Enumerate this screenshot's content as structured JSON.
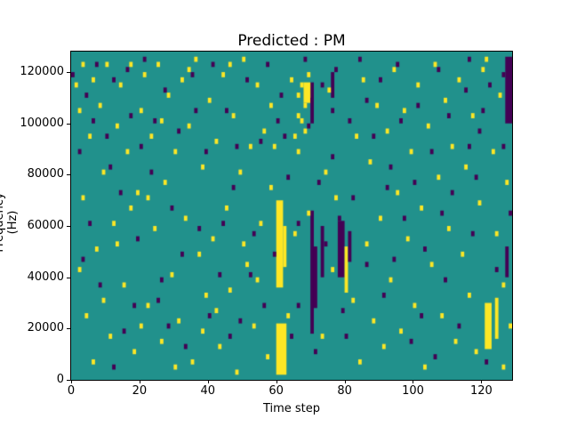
{
  "figure": {
    "background": "#ffffff"
  },
  "chart_data": {
    "type": "heatmap",
    "title": "Predicted : PM",
    "xlabel": "Time step",
    "ylabel": "Frequency (Hz)",
    "xlim": [
      0,
      129
    ],
    "ylim": [
      0,
      128000
    ],
    "x_ticks": [
      0,
      20,
      40,
      60,
      80,
      100,
      120
    ],
    "y_ticks": [
      0,
      20000,
      40000,
      60000,
      80000,
      100000,
      120000
    ],
    "grid": {
      "cols": 129,
      "rows": 64,
      "freq_per_row": 2000
    },
    "colors": {
      "background": "#21918c",
      "yellow": "#fde725",
      "purple": "#440154"
    },
    "legend": "none",
    "blocks": [
      {
        "c": 60,
        "r": 1,
        "w": 3,
        "h": 10,
        "color": "y"
      },
      {
        "c": 60,
        "r": 18,
        "w": 2,
        "h": 17,
        "color": "y"
      },
      {
        "c": 62,
        "r": 22,
        "w": 1,
        "h": 8,
        "color": "y"
      },
      {
        "c": 70,
        "r": 9,
        "w": 1,
        "h": 24,
        "color": "p"
      },
      {
        "c": 71,
        "r": 14,
        "w": 1,
        "h": 12,
        "color": "p"
      },
      {
        "c": 73,
        "r": 20,
        "w": 1,
        "h": 10,
        "color": "p"
      },
      {
        "c": 78,
        "r": 20,
        "w": 2,
        "h": 11,
        "color": "p"
      },
      {
        "c": 80,
        "r": 17,
        "w": 1,
        "h": 9,
        "color": "y"
      },
      {
        "c": 81,
        "r": 23,
        "w": 1,
        "h": 6,
        "color": "p"
      },
      {
        "c": 76,
        "r": 55,
        "w": 1,
        "h": 5,
        "color": "p"
      },
      {
        "c": 70,
        "r": 50,
        "w": 1,
        "h": 8,
        "color": "p"
      },
      {
        "c": 68,
        "r": 54,
        "w": 2,
        "h": 4,
        "color": "y"
      },
      {
        "c": 121,
        "r": 6,
        "w": 2,
        "h": 9,
        "color": "y"
      },
      {
        "c": 124,
        "r": 8,
        "w": 1,
        "h": 8,
        "color": "y"
      },
      {
        "c": 127,
        "r": 50,
        "w": 2,
        "h": 13,
        "color": "p"
      },
      {
        "c": 127,
        "r": 20,
        "w": 1,
        "h": 6,
        "color": "p"
      }
    ],
    "cells": {
      "yellow": [
        [
          1,
          57
        ],
        [
          2,
          52
        ],
        [
          3,
          61
        ],
        [
          3,
          35
        ],
        [
          4,
          12
        ],
        [
          5,
          47
        ],
        [
          6,
          58
        ],
        [
          7,
          25
        ],
        [
          8,
          53
        ],
        [
          9,
          40
        ],
        [
          10,
          61
        ],
        [
          11,
          8
        ],
        [
          12,
          30
        ],
        [
          13,
          49
        ],
        [
          14,
          57
        ],
        [
          15,
          18
        ],
        [
          16,
          44
        ],
        [
          17,
          61
        ],
        [
          18,
          5
        ],
        [
          19,
          36
        ],
        [
          20,
          52
        ],
        [
          2,
          21
        ],
        [
          6,
          3
        ],
        [
          9,
          15
        ],
        [
          13,
          26
        ],
        [
          17,
          33
        ],
        [
          20,
          10
        ],
        [
          21,
          59
        ],
        [
          22,
          14
        ],
        [
          23,
          47
        ],
        [
          24,
          29
        ],
        [
          25,
          61
        ],
        [
          26,
          7
        ],
        [
          27,
          38
        ],
        [
          28,
          55
        ],
        [
          29,
          20
        ],
        [
          30,
          44
        ],
        [
          31,
          11
        ],
        [
          32,
          58
        ],
        [
          33,
          31
        ],
        [
          34,
          49
        ],
        [
          35,
          3
        ],
        [
          36,
          62
        ],
        [
          37,
          24
        ],
        [
          38,
          41
        ],
        [
          39,
          16
        ],
        [
          40,
          54
        ],
        [
          22,
          35
        ],
        [
          26,
          50
        ],
        [
          30,
          2
        ],
        [
          34,
          60
        ],
        [
          38,
          9
        ],
        [
          41,
          27
        ],
        [
          42,
          46
        ],
        [
          43,
          6
        ],
        [
          44,
          59
        ],
        [
          45,
          33
        ],
        [
          46,
          17
        ],
        [
          47,
          51
        ],
        [
          48,
          1
        ],
        [
          49,
          40
        ],
        [
          50,
          62
        ],
        [
          51,
          22
        ],
        [
          52,
          45
        ],
        [
          53,
          10
        ],
        [
          54,
          57
        ],
        [
          55,
          30
        ],
        [
          56,
          48
        ],
        [
          57,
          4
        ],
        [
          58,
          37
        ],
        [
          42,
          13
        ],
        [
          46,
          61
        ],
        [
          50,
          26
        ],
        [
          54,
          19
        ],
        [
          58,
          53
        ],
        [
          59,
          45
        ],
        [
          63,
          12
        ],
        [
          64,
          58
        ],
        [
          65,
          28
        ],
        [
          66,
          55
        ],
        [
          67,
          50
        ],
        [
          66,
          51
        ],
        [
          67,
          57
        ],
        [
          68,
          53
        ],
        [
          68,
          48
        ],
        [
          69,
          59
        ],
        [
          65,
          47
        ],
        [
          66,
          44
        ],
        [
          69,
          32
        ],
        [
          73,
          8
        ],
        [
          74,
          40
        ],
        [
          75,
          56
        ],
        [
          76,
          21
        ],
        [
          77,
          35
        ],
        [
          82,
          15
        ],
        [
          83,
          47
        ],
        [
          84,
          3
        ],
        [
          85,
          58
        ],
        [
          86,
          26
        ],
        [
          87,
          42
        ],
        [
          88,
          11
        ],
        [
          89,
          53
        ],
        [
          90,
          31
        ],
        [
          91,
          6
        ],
        [
          92,
          48
        ],
        [
          93,
          19
        ],
        [
          94,
          60
        ],
        [
          95,
          36
        ],
        [
          96,
          9
        ],
        [
          97,
          52
        ],
        [
          98,
          27
        ],
        [
          99,
          44
        ],
        [
          100,
          14
        ],
        [
          101,
          57
        ],
        [
          102,
          33
        ],
        [
          103,
          2
        ],
        [
          104,
          49
        ],
        [
          105,
          22
        ],
        [
          106,
          61
        ],
        [
          107,
          39
        ],
        [
          108,
          12
        ],
        [
          109,
          54
        ],
        [
          110,
          29
        ],
        [
          111,
          45
        ],
        [
          112,
          7
        ],
        [
          113,
          58
        ],
        [
          114,
          24
        ],
        [
          115,
          41
        ],
        [
          116,
          16
        ],
        [
          117,
          51
        ],
        [
          118,
          5
        ],
        [
          119,
          34
        ],
        [
          120,
          60
        ],
        [
          123,
          44
        ],
        [
          124,
          28
        ],
        [
          125,
          55
        ],
        [
          126,
          18
        ],
        [
          127,
          38
        ],
        [
          128,
          10
        ],
        [
          121,
          62
        ],
        [
          126,
          2
        ]
      ],
      "purple": [
        [
          0,
          59
        ],
        [
          2,
          44
        ],
        [
          4,
          55
        ],
        [
          5,
          30
        ],
        [
          7,
          61
        ],
        [
          8,
          18
        ],
        [
          10,
          47
        ],
        [
          12,
          58
        ],
        [
          14,
          36
        ],
        [
          15,
          9
        ],
        [
          17,
          51
        ],
        [
          19,
          27
        ],
        [
          21,
          62
        ],
        [
          23,
          40
        ],
        [
          25,
          15
        ],
        [
          27,
          56
        ],
        [
          29,
          33
        ],
        [
          31,
          48
        ],
        [
          33,
          6
        ],
        [
          35,
          59
        ],
        [
          37,
          29
        ],
        [
          39,
          44
        ],
        [
          41,
          61
        ],
        [
          43,
          20
        ],
        [
          45,
          52
        ],
        [
          47,
          37
        ],
        [
          49,
          11
        ],
        [
          51,
          58
        ],
        [
          53,
          28
        ],
        [
          55,
          46
        ],
        [
          57,
          61
        ],
        [
          59,
          24
        ],
        [
          61,
          55
        ],
        [
          63,
          39
        ],
        [
          64,
          8
        ],
        [
          66,
          30
        ],
        [
          68,
          62
        ],
        [
          69,
          49
        ],
        [
          71,
          5
        ],
        [
          73,
          57
        ],
        [
          74,
          26
        ],
        [
          76,
          43
        ],
        [
          77,
          60
        ],
        [
          79,
          13
        ],
        [
          81,
          50
        ],
        [
          82,
          35
        ],
        [
          84,
          62
        ],
        [
          86,
          22
        ],
        [
          88,
          47
        ],
        [
          90,
          58
        ],
        [
          91,
          16
        ],
        [
          93,
          41
        ],
        [
          95,
          61
        ],
        [
          97,
          31
        ],
        [
          99,
          7
        ],
        [
          101,
          53
        ],
        [
          103,
          25
        ],
        [
          105,
          44
        ],
        [
          107,
          60
        ],
        [
          109,
          19
        ],
        [
          111,
          36
        ],
        [
          113,
          10
        ],
        [
          115,
          56
        ],
        [
          117,
          28
        ],
        [
          119,
          48
        ],
        [
          121,
          3
        ],
        [
          122,
          57
        ],
        [
          124,
          21
        ],
        [
          126,
          45
        ],
        [
          128,
          32
        ],
        [
          3,
          23
        ],
        [
          11,
          41
        ],
        [
          18,
          14
        ],
        [
          24,
          50
        ],
        [
          32,
          24
        ],
        [
          40,
          12
        ],
        [
          48,
          45
        ],
        [
          56,
          14
        ],
        [
          62,
          47
        ],
        [
          70,
          54
        ],
        [
          78,
          31
        ],
        [
          86,
          54
        ],
        [
          94,
          23
        ],
        [
          102,
          12
        ],
        [
          110,
          51
        ],
        [
          118,
          39
        ],
        [
          126,
          59
        ],
        [
          6,
          50
        ],
        [
          16,
          60
        ],
        [
          26,
          19
        ],
        [
          36,
          52
        ],
        [
          46,
          8
        ],
        [
          66,
          14
        ],
        [
          76,
          52
        ],
        [
          96,
          50
        ],
        [
          106,
          4
        ],
        [
          116,
          62
        ],
        [
          44,
          30
        ],
        [
          52,
          20
        ],
        [
          60,
          50
        ],
        [
          100,
          38
        ],
        [
          108,
          32
        ],
        [
          92,
          37
        ],
        [
          80,
          8
        ],
        [
          72,
          38
        ],
        [
          28,
          10
        ],
        [
          20,
          45
        ],
        [
          12,
          2
        ],
        [
          116,
          45
        ],
        [
          120,
          52
        ]
      ]
    }
  }
}
